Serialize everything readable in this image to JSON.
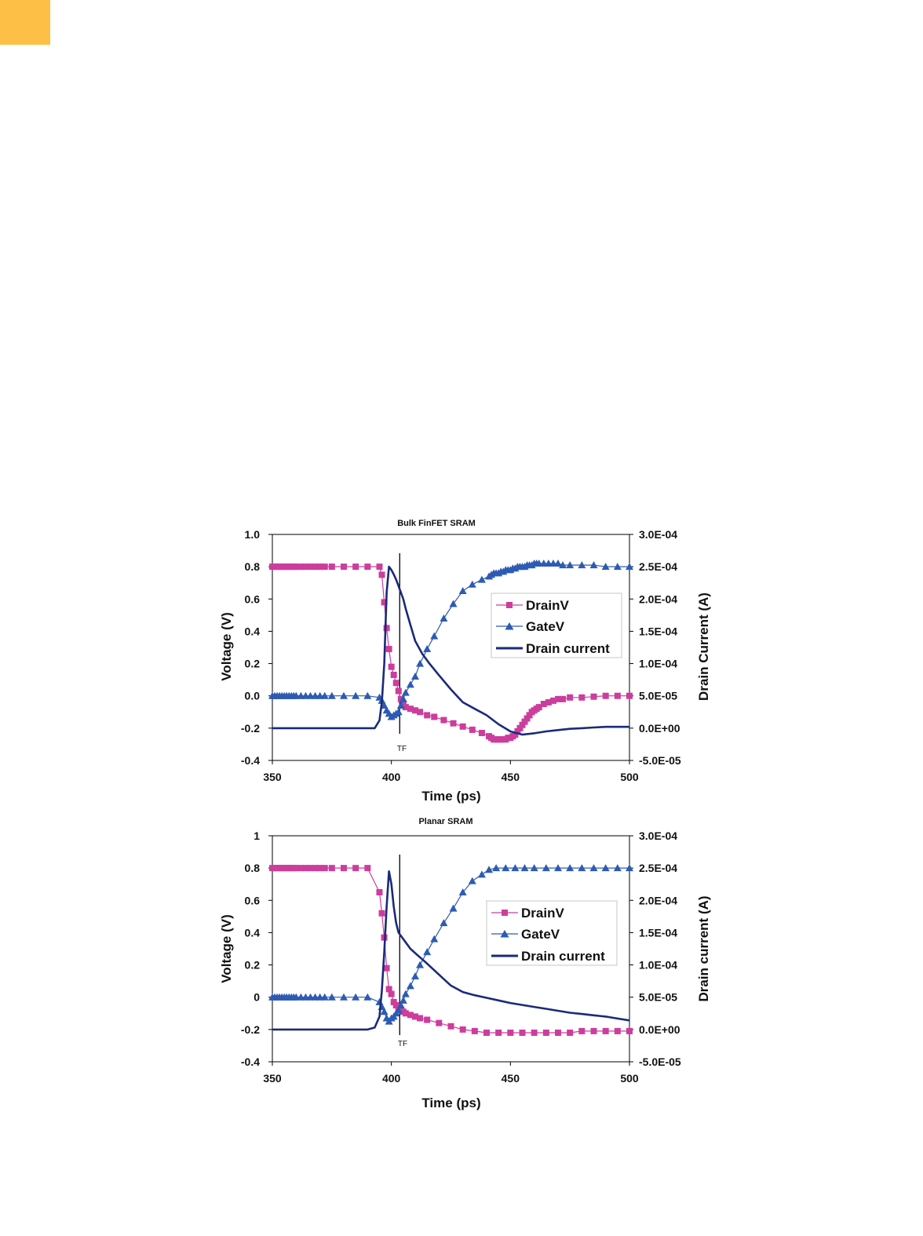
{
  "colors": {
    "drainv": "#cc3d9c",
    "gatev": "#2d5bb3",
    "drain_current": "#1b2a7a",
    "corner_tab": "#fdbf45"
  },
  "legend_labels": [
    "DrainV",
    "GateV",
    "Drain current"
  ],
  "chart_data": [
    {
      "type": "line",
      "title": "Bulk FinFET SRAM",
      "xlabel": "Time (ps)",
      "ylabel": "Voltage (V)",
      "y2label": "Drain Current (A)",
      "xlim": [
        350,
        500
      ],
      "ylim": [
        -0.4,
        1.0
      ],
      "y2lim": [
        -5e-05,
        0.0003
      ],
      "xticks": [
        "350",
        "400",
        "450",
        "500"
      ],
      "yticks": [
        "1.0",
        "0.8",
        "0.6",
        "0.4",
        "0.2",
        "0.0",
        "-0.2",
        "-0.4"
      ],
      "y2ticks": [
        "3.0E-04",
        "2.5E-04",
        "2.0E-04",
        "1.5E-04",
        "1.0E-04",
        "5.0E-05",
        "0.0E+00",
        "-5.0E-05"
      ],
      "marker_label": "TF",
      "marker_x": 403.5,
      "legend": "right, upper-middle",
      "series": [
        {
          "name": "DrainV",
          "axis": "left",
          "marker": "square",
          "x": [
            350,
            351,
            352,
            353,
            354,
            355,
            356,
            357,
            358,
            359,
            360,
            362,
            364,
            366,
            368,
            370,
            372,
            375,
            380,
            385,
            390,
            395,
            396,
            397,
            398,
            399,
            400,
            401,
            402,
            403,
            404,
            405,
            406,
            408,
            410,
            412,
            415,
            418,
            422,
            426,
            430,
            434,
            438,
            441,
            442,
            443,
            444,
            445,
            446,
            447,
            448,
            449,
            450,
            451,
            452,
            453,
            454,
            455,
            456,
            457,
            458,
            459,
            460,
            461,
            462,
            464,
            466,
            468,
            470,
            472,
            475,
            480,
            485,
            490,
            495,
            500
          ],
          "y": [
            0.8,
            0.8,
            0.8,
            0.8,
            0.8,
            0.8,
            0.8,
            0.8,
            0.8,
            0.8,
            0.8,
            0.8,
            0.8,
            0.8,
            0.8,
            0.8,
            0.8,
            0.8,
            0.8,
            0.8,
            0.8,
            0.8,
            0.75,
            0.58,
            0.42,
            0.29,
            0.18,
            0.13,
            0.08,
            0.03,
            -0.02,
            -0.05,
            -0.07,
            -0.08,
            -0.09,
            -0.1,
            -0.12,
            -0.13,
            -0.15,
            -0.17,
            -0.19,
            -0.21,
            -0.23,
            -0.25,
            -0.26,
            -0.27,
            -0.27,
            -0.27,
            -0.27,
            -0.27,
            -0.27,
            -0.26,
            -0.26,
            -0.25,
            -0.24,
            -0.22,
            -0.2,
            -0.18,
            -0.16,
            -0.14,
            -0.12,
            -0.1,
            -0.09,
            -0.08,
            -0.07,
            -0.05,
            -0.04,
            -0.03,
            -0.02,
            -0.02,
            -0.01,
            -0.01,
            -0.005,
            0.0,
            0.0,
            0.0
          ]
        },
        {
          "name": "GateV",
          "axis": "left",
          "marker": "triangle",
          "x": [
            350,
            351,
            352,
            353,
            354,
            355,
            356,
            357,
            358,
            359,
            360,
            362,
            364,
            366,
            368,
            370,
            372,
            375,
            380,
            385,
            390,
            395,
            396,
            397,
            398,
            399,
            400,
            401,
            402,
            403,
            404,
            405,
            406,
            408,
            410,
            412,
            415,
            418,
            422,
            426,
            430,
            434,
            438,
            441,
            442,
            443,
            444,
            445,
            446,
            447,
            448,
            449,
            450,
            451,
            452,
            453,
            454,
            455,
            456,
            457,
            458,
            459,
            460,
            461,
            462,
            464,
            466,
            468,
            470,
            472,
            475,
            480,
            485,
            490,
            495,
            500
          ],
          "y": [
            0.0,
            0.0,
            0.0,
            0.0,
            0.0,
            0.0,
            0.0,
            0.0,
            0.0,
            0.0,
            0.0,
            0.0,
            0.0,
            0.0,
            0.0,
            0.0,
            0.0,
            0.0,
            0.0,
            0.0,
            0.0,
            -0.01,
            -0.03,
            -0.06,
            -0.09,
            -0.11,
            -0.13,
            -0.12,
            -0.11,
            -0.1,
            -0.06,
            -0.02,
            0.02,
            0.07,
            0.12,
            0.2,
            0.29,
            0.37,
            0.48,
            0.57,
            0.65,
            0.69,
            0.72,
            0.74,
            0.75,
            0.76,
            0.76,
            0.76,
            0.77,
            0.77,
            0.78,
            0.78,
            0.78,
            0.79,
            0.79,
            0.8,
            0.8,
            0.8,
            0.8,
            0.81,
            0.81,
            0.81,
            0.82,
            0.82,
            0.82,
            0.82,
            0.82,
            0.82,
            0.82,
            0.81,
            0.81,
            0.81,
            0.81,
            0.8,
            0.8,
            0.8
          ]
        },
        {
          "name": "Drain current",
          "axis": "right",
          "marker": "none",
          "x": [
            350,
            360,
            370,
            380,
            390,
            393,
            395,
            396,
            397,
            398,
            399,
            400,
            401,
            402,
            403,
            404,
            405,
            406,
            408,
            410,
            413,
            416,
            420,
            425,
            430,
            435,
            440,
            445,
            450,
            455,
            460,
            465,
            470,
            475,
            480,
            485,
            490,
            495,
            500
          ],
          "y": [
            0.0,
            0.0,
            0.0,
            0.0,
            0.0,
            0.0,
            1.2e-05,
            4e-05,
            0.0001,
            0.00021,
            0.00025,
            0.000245,
            0.000238,
            0.00023,
            0.00022,
            0.00021,
            0.0002,
            0.000185,
            0.00016,
            0.000135,
            0.000115,
            0.0001,
            8.2e-05,
            6e-05,
            4e-05,
            3e-05,
            2e-05,
            6e-06,
            -5e-06,
            -1e-05,
            -8e-06,
            -5e-06,
            -3e-06,
            -1e-06,
            0.0,
            1e-06,
            2e-06,
            2e-06,
            2e-06
          ]
        }
      ]
    },
    {
      "type": "line",
      "title": "Planar SRAM",
      "xlabel": "Time (ps)",
      "ylabel": "Voltage (V)",
      "y2label": "Drain current (A)",
      "xlim": [
        350,
        500
      ],
      "ylim": [
        -0.4,
        1.0
      ],
      "y2lim": [
        -5e-05,
        0.0003
      ],
      "xticks": [
        "350",
        "400",
        "450",
        "500"
      ],
      "yticks": [
        "1",
        "0.8",
        "0.6",
        "0.4",
        "0.2",
        "0",
        "-0.2",
        "-0.4"
      ],
      "y2ticks": [
        "3.0E-04",
        "2.5E-04",
        "2.0E-04",
        "1.5E-04",
        "1.0E-04",
        "5.0E-05",
        "0.0E+00",
        "-5.0E-05"
      ],
      "marker_label": "TF",
      "marker_x": 403.5,
      "legend": "right, middle",
      "series": [
        {
          "name": "DrainV",
          "axis": "left",
          "marker": "square",
          "x": [
            350,
            351,
            352,
            353,
            354,
            355,
            356,
            357,
            358,
            359,
            360,
            362,
            364,
            366,
            368,
            370,
            372,
            375,
            380,
            385,
            390,
            395,
            396,
            397,
            398,
            399,
            400,
            401,
            402,
            403,
            404,
            405,
            406,
            408,
            410,
            412,
            415,
            420,
            425,
            430,
            435,
            440,
            445,
            450,
            455,
            460,
            465,
            470,
            475,
            480,
            485,
            490,
            495,
            500
          ],
          "y": [
            0.8,
            0.8,
            0.8,
            0.8,
            0.8,
            0.8,
            0.8,
            0.8,
            0.8,
            0.8,
            0.8,
            0.8,
            0.8,
            0.8,
            0.8,
            0.8,
            0.8,
            0.8,
            0.8,
            0.8,
            0.8,
            0.65,
            0.52,
            0.37,
            0.18,
            0.05,
            0.02,
            -0.03,
            -0.05,
            -0.07,
            -0.08,
            -0.09,
            -0.1,
            -0.11,
            -0.12,
            -0.13,
            -0.14,
            -0.16,
            -0.18,
            -0.2,
            -0.21,
            -0.22,
            -0.22,
            -0.22,
            -0.22,
            -0.22,
            -0.22,
            -0.22,
            -0.22,
            -0.21,
            -0.21,
            -0.21,
            -0.21,
            -0.21
          ]
        },
        {
          "name": "GateV",
          "axis": "left",
          "marker": "triangle",
          "x": [
            350,
            351,
            352,
            353,
            354,
            355,
            356,
            357,
            358,
            359,
            360,
            362,
            364,
            366,
            368,
            370,
            372,
            375,
            380,
            385,
            390,
            395,
            396,
            397,
            398,
            399,
            400,
            401,
            402,
            403,
            404,
            405,
            406,
            408,
            410,
            412,
            415,
            418,
            422,
            426,
            430,
            434,
            438,
            441,
            444,
            448,
            452,
            456,
            460,
            465,
            470,
            475,
            480,
            485,
            490,
            495,
            500
          ],
          "y": [
            0.0,
            0.0,
            0.0,
            0.0,
            0.0,
            0.0,
            0.0,
            0.0,
            0.0,
            0.0,
            0.0,
            0.0,
            0.0,
            0.0,
            0.0,
            0.0,
            0.0,
            0.0,
            0.0,
            0.0,
            0.0,
            -0.03,
            -0.06,
            -0.09,
            -0.13,
            -0.15,
            -0.13,
            -0.12,
            -0.1,
            -0.08,
            -0.05,
            -0.02,
            0.02,
            0.07,
            0.13,
            0.2,
            0.28,
            0.36,
            0.46,
            0.55,
            0.65,
            0.72,
            0.76,
            0.79,
            0.8,
            0.8,
            0.8,
            0.8,
            0.8,
            0.8,
            0.8,
            0.8,
            0.8,
            0.8,
            0.8,
            0.8,
            0.8
          ]
        },
        {
          "name": "Drain current",
          "axis": "right",
          "marker": "none",
          "x": [
            350,
            360,
            370,
            380,
            390,
            393,
            395,
            396,
            397,
            398,
            399,
            400,
            401,
            402,
            403,
            404,
            406,
            408,
            411,
            415,
            420,
            425,
            430,
            435,
            440,
            445,
            450,
            455,
            460,
            465,
            470,
            475,
            480,
            485,
            490,
            495,
            500
          ],
          "y": [
            0.0,
            0.0,
            0.0,
            0.0,
            0.0,
            3e-06,
            2e-05,
            6e-05,
            0.00012,
            0.00019,
            0.000245,
            0.000225,
            0.00019,
            0.000165,
            0.00015,
            0.000145,
            0.000135,
            0.000125,
            0.000115,
            0.000102,
            8.5e-05,
            6.8e-05,
            5.8e-05,
            5.3e-05,
            4.9e-05,
            4.5e-05,
            4.1e-05,
            3.8e-05,
            3.5e-05,
            3.2e-05,
            2.9e-05,
            2.6e-05,
            2.4e-05,
            2.2e-05,
            2e-05,
            1.7e-05,
            1.4e-05
          ]
        }
      ]
    }
  ]
}
